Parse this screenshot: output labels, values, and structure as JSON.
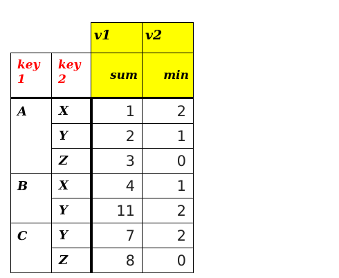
{
  "header": {
    "value_columns": [
      "v1",
      "v2"
    ],
    "key_columns": [
      "key\n1",
      "key\n2"
    ],
    "aggregations": [
      "sum",
      "min"
    ]
  },
  "groups": [
    {
      "key1": "A",
      "rows": [
        {
          "key2": "X",
          "sum": "1",
          "min": "2"
        },
        {
          "key2": "Y",
          "sum": "2",
          "min": "1"
        },
        {
          "key2": "Z",
          "sum": "3",
          "min": "0"
        }
      ]
    },
    {
      "key1": "B",
      "rows": [
        {
          "key2": "X",
          "sum": "4",
          "min": "1"
        },
        {
          "key2": "Y",
          "sum": "11",
          "min": "2"
        }
      ]
    },
    {
      "key1": "C",
      "rows": [
        {
          "key2": "Y",
          "sum": "7",
          "min": "2"
        },
        {
          "key2": "Z",
          "sum": "8",
          "min": "0"
        }
      ]
    }
  ],
  "colors": {
    "header_fill": "#ffff00",
    "key_header_text": "#ff0000"
  }
}
